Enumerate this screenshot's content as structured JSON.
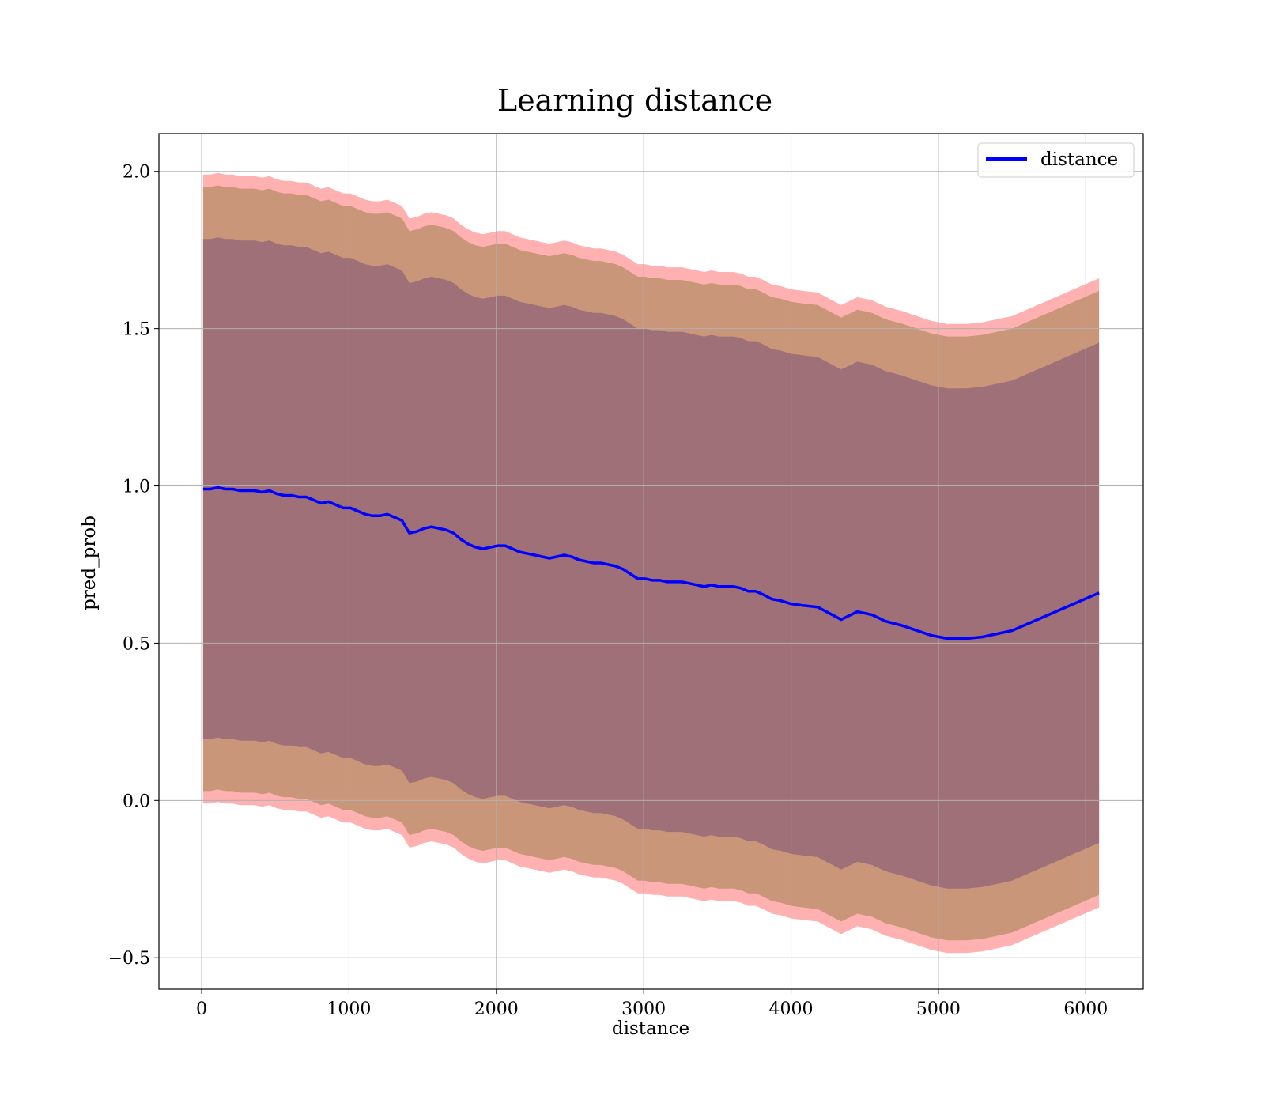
{
  "chart_data": {
    "type": "line",
    "title": "Learning distance",
    "xlabel": "distance",
    "ylabel": "pred_prob",
    "xlim": [
      -290,
      6390
    ],
    "ylim": [
      -0.6,
      2.12
    ],
    "xticks": [
      0,
      1000,
      2000,
      3000,
      4000,
      5000,
      6000
    ],
    "xtick_labels": [
      "0",
      "1000",
      "2000",
      "3000",
      "4000",
      "5000",
      "6000"
    ],
    "yticks": [
      -0.5,
      0.0,
      0.5,
      1.0,
      1.5,
      2.0
    ],
    "ytick_labels": [
      "−0.5",
      "0.0",
      "0.5",
      "1.0",
      "1.5",
      "2.0"
    ],
    "grid": true,
    "legend": {
      "placement": "top-right",
      "entries": [
        "distance"
      ]
    },
    "colors": {
      "line": "#0000ff",
      "band_outer": "#ffb0b0",
      "band_middle": "#c9967a",
      "band_inner": "#a07078",
      "grid": "#b0b0b0"
    },
    "series": [
      {
        "name": "distance",
        "x": [
          10,
          60,
          110,
          160,
          210,
          260,
          310,
          360,
          410,
          460,
          510,
          560,
          610,
          660,
          710,
          760,
          810,
          860,
          910,
          960,
          1010,
          1060,
          1110,
          1160,
          1210,
          1260,
          1310,
          1360,
          1410,
          1460,
          1510,
          1560,
          1610,
          1660,
          1710,
          1760,
          1810,
          1860,
          1910,
          1960,
          2010,
          2060,
          2110,
          2160,
          2210,
          2260,
          2310,
          2360,
          2410,
          2460,
          2510,
          2560,
          2610,
          2660,
          2710,
          2760,
          2810,
          2860,
          2910,
          2960,
          3010,
          3060,
          3110,
          3160,
          3210,
          3260,
          3310,
          3360,
          3410,
          3460,
          3510,
          3560,
          3610,
          3660,
          3710,
          3760,
          3810,
          3870,
          3930,
          4000,
          4080,
          4180,
          4340,
          4450,
          4550,
          4640,
          4760,
          4950,
          5060,
          5190,
          5300,
          5500,
          6090
        ],
        "y": [
          0.99,
          0.99,
          0.995,
          0.99,
          0.99,
          0.985,
          0.985,
          0.985,
          0.98,
          0.985,
          0.975,
          0.97,
          0.97,
          0.965,
          0.965,
          0.955,
          0.945,
          0.95,
          0.94,
          0.93,
          0.93,
          0.92,
          0.91,
          0.905,
          0.905,
          0.91,
          0.9,
          0.89,
          0.85,
          0.855,
          0.865,
          0.87,
          0.865,
          0.86,
          0.85,
          0.83,
          0.815,
          0.805,
          0.8,
          0.805,
          0.81,
          0.81,
          0.8,
          0.79,
          0.785,
          0.78,
          0.775,
          0.77,
          0.775,
          0.78,
          0.775,
          0.765,
          0.76,
          0.755,
          0.755,
          0.75,
          0.745,
          0.735,
          0.72,
          0.705,
          0.705,
          0.7,
          0.7,
          0.695,
          0.695,
          0.695,
          0.69,
          0.685,
          0.68,
          0.685,
          0.68,
          0.68,
          0.68,
          0.675,
          0.665,
          0.665,
          0.655,
          0.64,
          0.635,
          0.625,
          0.62,
          0.615,
          0.575,
          0.6,
          0.59,
          0.57,
          0.555,
          0.525,
          0.515,
          0.515,
          0.52,
          0.54,
          0.66
        ]
      }
    ],
    "bands": [
      {
        "name": "outer",
        "offset": 1.0
      },
      {
        "name": "middle",
        "offset": 0.96
      },
      {
        "name": "inner",
        "offset": 0.795
      }
    ]
  }
}
